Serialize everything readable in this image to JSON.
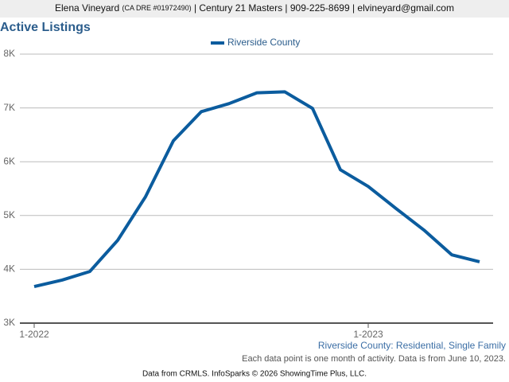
{
  "header": {
    "name": "Elena Vineyard",
    "license": "(CA DRE #01972490)",
    "details": "| Century 21 Masters | 909-225-8699 | elvineyard@gmail.com"
  },
  "chart_data": {
    "type": "line",
    "title": "Active Listings",
    "categories": [
      "1-2022",
      null,
      null,
      null,
      null,
      null,
      null,
      null,
      null,
      null,
      null,
      null,
      "1-2023",
      null,
      null,
      null,
      null
    ],
    "series": [
      {
        "name": "Riverside County",
        "color": "#0b5c9e",
        "values": [
          3680,
          3800,
          3960,
          4540,
          5350,
          6390,
          6930,
          7080,
          7280,
          7300,
          6990,
          5850,
          5540,
          5130,
          4730,
          4270,
          4140
        ]
      }
    ],
    "ylim": [
      3000,
      8000
    ],
    "yticks": [
      {
        "value": 3000,
        "label": "3K"
      },
      {
        "value": 4000,
        "label": "4K"
      },
      {
        "value": 5000,
        "label": "5K"
      },
      {
        "value": 6000,
        "label": "6K"
      },
      {
        "value": 7000,
        "label": "7K"
      },
      {
        "value": 8000,
        "label": "8K"
      }
    ],
    "grid": true,
    "legend": "top",
    "subtitle": "Riverside County: Residential, Single Family",
    "note": "Each data point is one month of activity. Data is from June 10, 2023."
  },
  "footer": "Data from CRMLS. InfoSparks © 2026 ShowingTime Plus, LLC."
}
